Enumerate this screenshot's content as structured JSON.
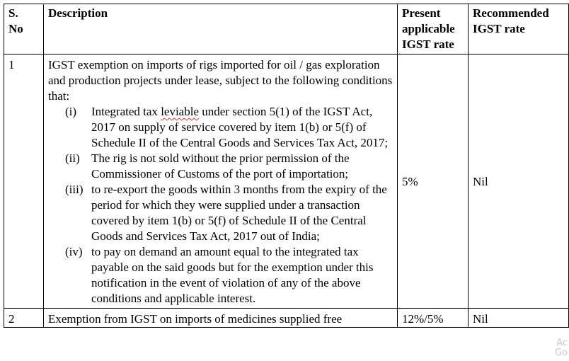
{
  "headers": {
    "sno": "S. No",
    "description": "Description",
    "present": "Present applicable IGST rate",
    "recommended": "Recommended IGST rate"
  },
  "rows": [
    {
      "sno": "1",
      "intro": "IGST exemption on imports of rigs imported for oil / gas exploration and production projects under lease, subject to the following conditions that:",
      "conditions": [
        {
          "num": "(i)",
          "before": "Integrated tax ",
          "flagged": "leviable",
          "after": " under section 5(1) of the IGST Act, 2017 on supply of service covered by item 1(b) or 5(f) of Schedule II of the Central Goods and Services Tax Act, 2017;"
        },
        {
          "num": "(ii)",
          "text": "The rig is not sold without the prior permission of the Commissioner of Customs of the port of importation;"
        },
        {
          "num": "(iii)",
          "text": "to re-export the goods within 3 months from the expiry of the period for which they were supplied under a transaction covered by item 1(b) or 5(f) of Schedule II of the Central Goods and Services Tax Act, 2017 out of India;"
        },
        {
          "num": "(iv)",
          "text": "to pay on demand an amount equal to the integrated tax payable on the said goods but for the exemption under this notification in the event of violation of any of the above conditions and applicable interest."
        }
      ],
      "present": "5%",
      "recommended": "Nil"
    },
    {
      "sno": "2",
      "description": "Exemption from IGST on imports of medicines supplied free",
      "present": "12%/5%",
      "recommended": "Nil"
    }
  ],
  "corner_mark": "Ac\nGo"
}
